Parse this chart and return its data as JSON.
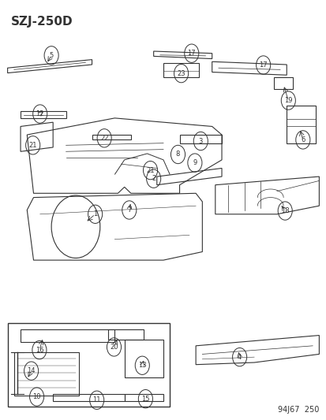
{
  "title": "SZJ-250D",
  "footer": "94J67  250",
  "bg_color": "#ffffff",
  "line_color": "#333333",
  "title_fontsize": 11,
  "footer_fontsize": 7,
  "label_fontsize": 7
}
